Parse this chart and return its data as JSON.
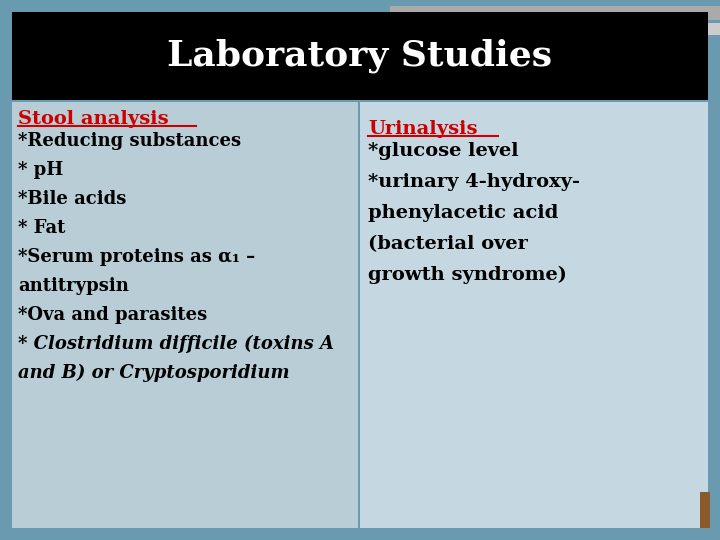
{
  "title": "Laboratory Studies",
  "title_color": "#ffffff",
  "title_fontsize": 26,
  "header_bg": "#000000",
  "left_bg": "#b8cdd6",
  "right_bg": "#c5d8e2",
  "slide_bg": "#6a9ab0",
  "top_bar1_color": "#aaaaaa",
  "top_bar2_color": "#cccccc",
  "left_header": "Stool analysis",
  "left_header_color": "#cc0000",
  "right_header": "Urinalysis",
  "right_header_color": "#cc0000",
  "left_items": [
    "*Reducing substances",
    "* pH",
    "*Bile acids",
    "* Fat",
    "*Serum proteins as α₁ –",
    "antitrypsin",
    "*Ova and parasites",
    "* Clostridium difficile (toxins A",
    "and B) or Cryptosporidium"
  ],
  "left_italic_items": [
    false,
    false,
    false,
    false,
    false,
    false,
    false,
    true,
    true
  ],
  "right_items": [
    "*glucose level",
    "*urinary 4-hydroxy-",
    "phenylacetic acid",
    "(bacterial over",
    "growth syndrome)"
  ],
  "text_color": "#000000",
  "item_fontsize": 13,
  "header_fontsize": 14,
  "corner_color": "#8b5a2b"
}
